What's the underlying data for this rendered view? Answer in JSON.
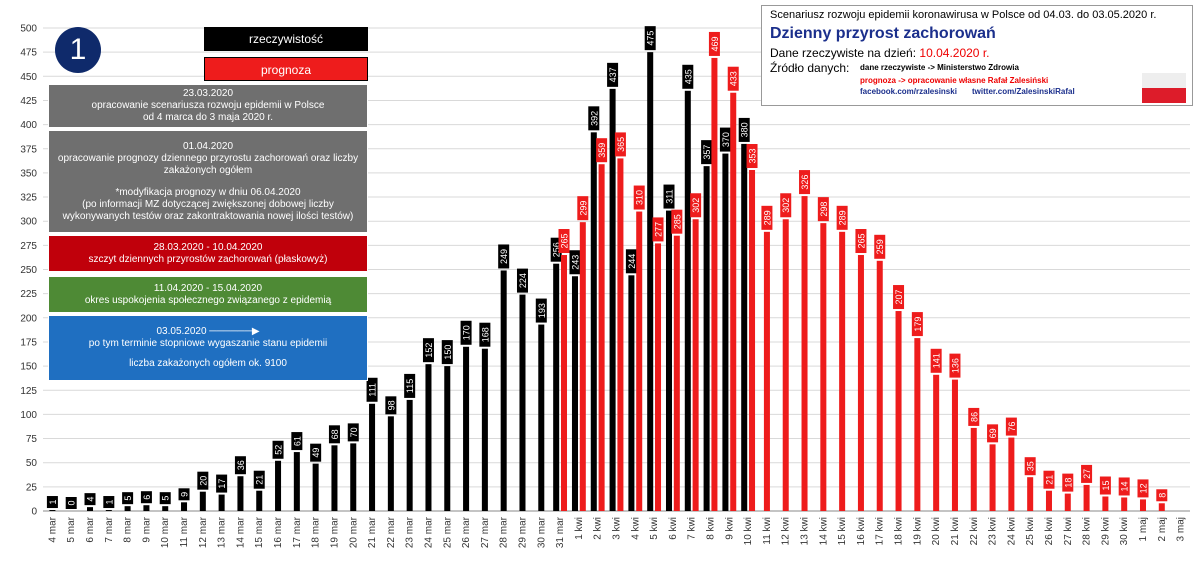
{
  "badge": "1",
  "legend": {
    "actual": {
      "label": "rzeczywistość",
      "color": "#000000"
    },
    "forecast": {
      "label": "prognoza",
      "color": "#ee1c1c"
    }
  },
  "notes": [
    {
      "color": "#6f6f6f",
      "lines": [
        "23.03.2020",
        "opracowanie scenariusza rozwoju epidemii w Polsce",
        "od 4 marca do 3 maja 2020 r."
      ]
    },
    {
      "color": "#6f6f6f",
      "lines": [
        "01.04.2020",
        "opracowanie prognozy dziennego przyrostu zachorowań oraz liczby",
        "zakażonych ogółem",
        "",
        "*modyfikacja prognozy w dniu 06.04.2020",
        "(po informacji MZ dotyczącej zwiększonej dobowej liczby",
        "wykonywanych testów oraz zakontraktowania nowej ilości testów)"
      ]
    },
    {
      "color": "#c0000b",
      "lines": [
        "28.03.2020 - 10.04.2020",
        "szczyt dziennych przyrostów zachorowań (płaskowyż)"
      ]
    },
    {
      "color": "#4e8a35",
      "lines": [
        "11.04.2020 - 15.04.2020",
        "okres uspokojenia społecznego związanego z epidemią"
      ]
    },
    {
      "color": "#1f6fc1",
      "lines": [
        "03.05.2020 ──────▶",
        "po tym terminie stopniowe wygaszanie stanu epidemii",
        "",
        "liczba zakażonych ogółem ok. 9100"
      ]
    }
  ],
  "info": {
    "line1": "Scenariusz rozwoju epidemii koronawirusa w Polsce od 04.03. do 03.05.2020 r.",
    "title": "Dzienny przyrost zachorowań",
    "date_label": "Dane rzeczywiste na dzień:",
    "date_value": "10.04.2020 r.",
    "source_label": "Źródło danych:",
    "source1": "dane rzeczywiste -> Ministerstwo Zdrowia",
    "source2": "prognoza -> opracowanie własne Rafał Zalesiński",
    "source3": "facebook.com/rzalesinski",
    "source4": "twitter.com/ZalesinskiRafal"
  },
  "chart_data": {
    "type": "bar",
    "ylim": [
      0,
      500
    ],
    "yticks": [
      0,
      25,
      50,
      75,
      100,
      125,
      150,
      175,
      200,
      225,
      250,
      275,
      300,
      325,
      350,
      375,
      400,
      425,
      450,
      475,
      500
    ],
    "categories": [
      "4 mar",
      "5 mar",
      "6 mar",
      "7 mar",
      "8 mar",
      "9 mar",
      "10 mar",
      "11 mar",
      "12 mar",
      "13 mar",
      "14 mar",
      "15 mar",
      "16 mar",
      "17 mar",
      "18 mar",
      "19 mar",
      "20 mar",
      "21 mar",
      "22 mar",
      "23 mar",
      "24 mar",
      "25 mar",
      "26 mar",
      "27 mar",
      "28 mar",
      "29 mar",
      "30 mar",
      "31 mar",
      "1 kwi",
      "2 kwi",
      "3 kwi",
      "4 kwi",
      "5 kwi",
      "6 kwi",
      "7 kwi",
      "8 kwi",
      "9 kwi",
      "10 kwi",
      "11 kwi",
      "12 kwi",
      "13 kwi",
      "14 kwi",
      "15 kwi",
      "16 kwi",
      "17 kwi",
      "18 kwi",
      "19 kwi",
      "20 kwi",
      "21 kwi",
      "22 kwi",
      "23 kwi",
      "24 kwi",
      "25 kwi",
      "26 kwi",
      "27 kwi",
      "28 kwi",
      "29 kwi",
      "30 kwi",
      "1 maj",
      "2 maj",
      "3 maj"
    ],
    "series": [
      {
        "name": "rzeczywistość",
        "color": "#000000",
        "values": [
          1,
          0,
          4,
          1,
          5,
          6,
          5,
          9,
          20,
          17,
          36,
          21,
          52,
          61,
          49,
          68,
          70,
          111,
          98,
          115,
          152,
          150,
          170,
          168,
          249,
          224,
          193,
          256,
          243,
          392,
          437,
          244,
          475,
          311,
          435,
          357,
          370,
          380,
          null,
          null,
          null,
          null,
          null,
          null,
          null,
          null,
          null,
          null,
          null,
          null,
          null,
          null,
          null,
          null,
          null,
          null,
          null,
          null,
          null,
          null,
          null
        ]
      },
      {
        "name": "prognoza",
        "color": "#ee1c1c",
        "values": [
          null,
          null,
          null,
          null,
          null,
          null,
          null,
          null,
          null,
          null,
          null,
          null,
          null,
          null,
          null,
          null,
          null,
          null,
          null,
          null,
          null,
          null,
          null,
          null,
          null,
          null,
          null,
          265,
          299,
          359,
          365,
          310,
          277,
          285,
          302,
          469,
          433,
          353,
          289,
          302,
          326,
          298,
          289,
          265,
          259,
          207,
          179,
          141,
          136,
          86,
          69,
          76,
          35,
          21,
          18,
          27,
          15,
          14,
          12,
          8,
          null
        ]
      }
    ]
  }
}
